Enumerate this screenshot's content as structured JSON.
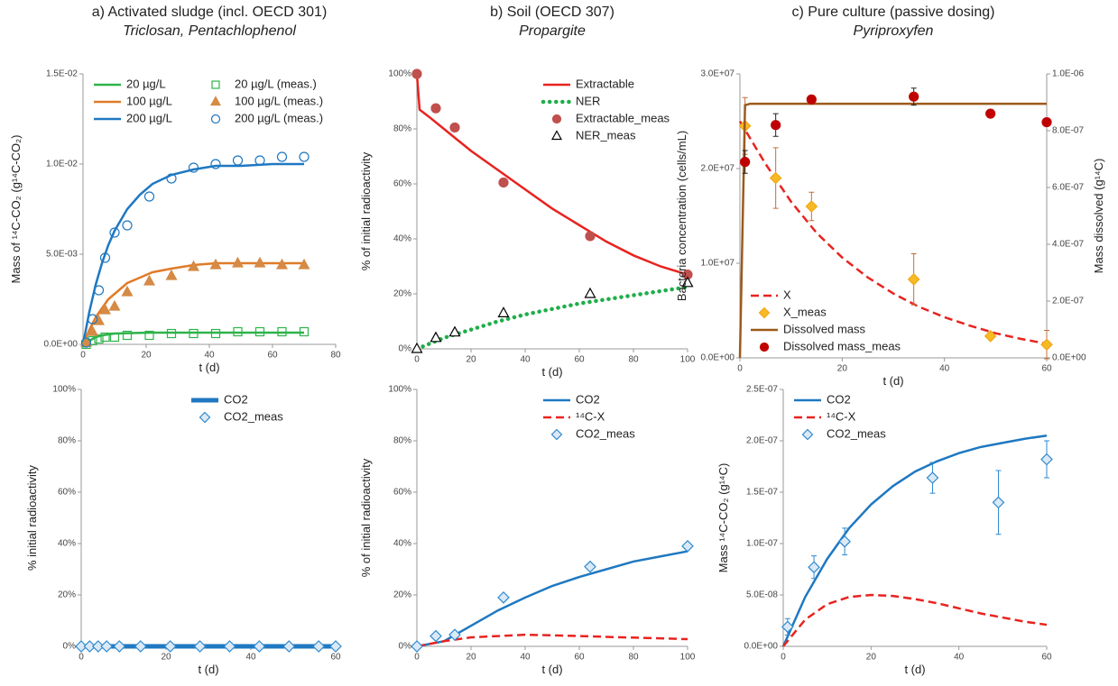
{
  "chart_data": [
    {
      "type": "line",
      "title": "a)  Activated sludge (incl. OECD 301)",
      "subtitle": "Triclosan, Pentachlophenol",
      "x_label": "t (d)",
      "y_label": "Mass of ¹⁴C-CO₂ (g¹⁴C-CO₂)",
      "xlim": [
        0,
        80
      ],
      "xticks": [
        0,
        20,
        40,
        60,
        80
      ],
      "ylim": [
        0,
        0.015
      ],
      "yticks": [
        {
          "value": 0,
          "label": "0.0E+00"
        },
        {
          "value": 0.005,
          "label": "5.0E-03"
        },
        {
          "value": 0.01,
          "label": "1.0E-02"
        },
        {
          "value": 0.015,
          "label": "1.5E-02"
        }
      ],
      "legend": "upper left",
      "legend_columns": 2,
      "series": [
        {
          "name": "20 µg/L",
          "color": "#2eb34a",
          "style": "line",
          "x": [
            0,
            2,
            4,
            6,
            8,
            10,
            14,
            18,
            22,
            28,
            35,
            42,
            50,
            60,
            70
          ],
          "values": [
            0,
            0.0002,
            0.0004,
            0.0005,
            0.00055,
            0.0006,
            0.00062,
            0.00064,
            0.00065,
            0.00065,
            0.00065,
            0.00065,
            0.00065,
            0.00065,
            0.00065
          ]
        },
        {
          "name": "100 µg/L",
          "color": "#e07b28",
          "style": "line",
          "x": [
            0,
            2,
            4,
            6,
            8,
            10,
            14,
            18,
            22,
            28,
            35,
            42,
            50,
            60,
            70
          ],
          "values": [
            0,
            0.0008,
            0.0015,
            0.002,
            0.0025,
            0.0028,
            0.0034,
            0.0037,
            0.004,
            0.0042,
            0.0044,
            0.0045,
            0.0045,
            0.0045,
            0.0045
          ]
        },
        {
          "name": "200 µg/L",
          "color": "#1f78c1",
          "style": "line",
          "x": [
            0,
            2,
            4,
            6,
            8,
            10,
            14,
            18,
            22,
            28,
            35,
            42,
            50,
            60,
            70
          ],
          "values": [
            0,
            0.0018,
            0.0033,
            0.0045,
            0.0055,
            0.0063,
            0.0075,
            0.0083,
            0.0089,
            0.0094,
            0.0097,
            0.0099,
            0.0099,
            0.01,
            0.01
          ]
        },
        {
          "name": "20 µg/L (meas.)",
          "color": "#2eb34a",
          "style": "markers",
          "marker": "square",
          "marker_fill": "none",
          "x": [
            1,
            3,
            5,
            7,
            10,
            14,
            21,
            28,
            35,
            42,
            49,
            56,
            63,
            70
          ],
          "values": [
            0,
            0.0002,
            0.0003,
            0.0004,
            0.0004,
            0.0005,
            0.0005,
            0.0006,
            0.0006,
            0.0006,
            0.0007,
            0.0007,
            0.0007,
            0.0007
          ]
        },
        {
          "name": "100 µg/L (meas.)",
          "color": "#d58a45",
          "style": "markers",
          "marker": "triangle",
          "marker_fill": "#d58a45",
          "x": [
            1,
            3,
            5,
            7,
            10,
            14,
            21,
            28,
            35,
            42,
            49,
            56,
            63,
            70
          ],
          "values": [
            0.0001,
            0.0007,
            0.0013,
            0.0019,
            0.0021,
            0.0029,
            0.0035,
            0.0038,
            0.0043,
            0.0044,
            0.0045,
            0.0045,
            0.0044,
            0.0044
          ]
        },
        {
          "name": "200 µg/L (meas.)",
          "color": "#1f78c1",
          "style": "markers",
          "marker": "circle",
          "marker_fill": "none",
          "x": [
            1,
            3,
            5,
            7,
            10,
            14,
            21,
            28,
            35,
            42,
            49,
            56,
            63,
            70
          ],
          "values": [
            0.0001,
            0.0014,
            0.003,
            0.0048,
            0.0062,
            0.0066,
            0.0082,
            0.0092,
            0.0098,
            0.01,
            0.0102,
            0.0102,
            0.0104,
            0.0104
          ]
        }
      ]
    },
    {
      "type": "line",
      "title": "b) Soil (OECD 307)",
      "subtitle": "Propargite",
      "x_label": "t (d)",
      "y_label": "% of initial radioactivity",
      "xlim": [
        0,
        100
      ],
      "xticks": [
        0,
        20,
        40,
        60,
        80,
        100
      ],
      "ylim": [
        0,
        100
      ],
      "yticks": [
        {
          "value": 0,
          "label": "0%"
        },
        {
          "value": 20,
          "label": "20%"
        },
        {
          "value": 40,
          "label": "40%"
        },
        {
          "value": 60,
          "label": "60%"
        },
        {
          "value": 80,
          "label": "80%"
        },
        {
          "value": 100,
          "label": "100%"
        }
      ],
      "legend": "upper right",
      "series": [
        {
          "name": "Extractable",
          "color": "#e8231f",
          "style": "line",
          "x": [
            0,
            1,
            5,
            10,
            20,
            30,
            40,
            50,
            60,
            70,
            80,
            90,
            100
          ],
          "values": [
            100,
            87,
            84,
            80,
            72,
            65,
            58,
            51,
            45,
            39,
            34,
            30,
            27
          ]
        },
        {
          "name": "NER",
          "color": "#1fae4a",
          "style": "dotted",
          "x": [
            0,
            5,
            10,
            20,
            30,
            40,
            50,
            60,
            70,
            80,
            90,
            100
          ],
          "values": [
            0,
            2,
            4,
            7,
            10,
            12.5,
            14.5,
            16.5,
            18,
            19.5,
            21,
            22.5
          ]
        },
        {
          "name": "Extractable_meas",
          "color": "#c0504d",
          "style": "markers",
          "marker": "circle",
          "marker_fill": "#c0504d",
          "x": [
            0,
            7,
            14,
            32,
            64,
            100
          ],
          "values": [
            100,
            87.5,
            80.5,
            60.5,
            41,
            27
          ]
        },
        {
          "name": "NER_meas",
          "color": "#000000",
          "style": "markers",
          "marker": "triangle",
          "marker_fill": "#ffffff",
          "x": [
            0,
            7,
            14,
            32,
            64,
            100
          ],
          "values": [
            0,
            4,
            6,
            13,
            20,
            24
          ]
        }
      ]
    },
    {
      "type": "line",
      "title": "c) Pure culture (passive dosing)",
      "subtitle": "Pyriproxyfen",
      "x_label": "t (d)",
      "y_label": "Bacteria concentration (cells/mL)",
      "y2_label": "Mass dissolved (g¹⁴C)",
      "xlim": [
        0,
        60
      ],
      "xticks": [
        0,
        20,
        40,
        60
      ],
      "ylim": [
        0,
        30000000
      ],
      "yticks": [
        {
          "value": 0,
          "label": "0.0E+00"
        },
        {
          "value": 10000000,
          "label": "1.0E+07"
        },
        {
          "value": 20000000,
          "label": "2.0E+07"
        },
        {
          "value": 30000000,
          "label": "3.0E+07"
        }
      ],
      "y2lim": [
        0,
        1e-06
      ],
      "y2ticks": [
        {
          "value": 0,
          "label": "0.0E+00"
        },
        {
          "value": 2e-07,
          "label": "2.0E-07"
        },
        {
          "value": 4e-07,
          "label": "4.0E-07"
        },
        {
          "value": 6e-07,
          "label": "6.0E-07"
        },
        {
          "value": 8e-07,
          "label": "8.0E-07"
        },
        {
          "value": 1e-06,
          "label": "1.0E-06"
        }
      ],
      "legend": "lower left",
      "series": [
        {
          "name": "X",
          "color": "#e8231f",
          "style": "dashed",
          "x": [
            0,
            5,
            10,
            15,
            20,
            25,
            30,
            35,
            40,
            45,
            50,
            55,
            60
          ],
          "values": [
            25000000,
            20500000,
            16500000,
            13200000,
            10600000,
            8500000,
            6800000,
            5400000,
            4300000,
            3400000,
            2600000,
            2000000,
            1500000
          ]
        },
        {
          "name": "X_meas",
          "color": "#f0a818",
          "style": "markers",
          "marker": "diamond",
          "marker_fill": "#f7b924",
          "err_color": "#c0703a",
          "x": [
            1,
            7,
            14,
            34,
            49,
            60
          ],
          "values": [
            24500000,
            19000000,
            16000000,
            8300000,
            2300000,
            1400000
          ],
          "errors": [
            3000000,
            3200000,
            1500000,
            2700000,
            0,
            1500000
          ]
        },
        {
          "name": "Dissolved mass",
          "color": "#9c5a1c",
          "style": "line",
          "axis": "y2",
          "x": [
            0,
            1,
            2,
            60
          ],
          "values": [
            0,
            8.9e-07,
            8.95e-07,
            8.95e-07
          ]
        },
        {
          "name": "Dissolved mass_meas",
          "color": "#c00000",
          "style": "markers",
          "marker": "circle",
          "marker_fill": "#c00000",
          "err_color": "#222222",
          "axis": "y2",
          "x": [
            1,
            7,
            14,
            34,
            49,
            60
          ],
          "values": [
            6.9e-07,
            8.2e-07,
            9.1e-07,
            9.2e-07,
            8.6e-07,
            8.3e-07
          ],
          "errors": [
            4e-08,
            4e-08,
            0,
            3e-08,
            0,
            0
          ]
        }
      ]
    },
    {
      "type": "line",
      "x_label": "t (d)",
      "y_label": "% initial radioactivity",
      "xlim": [
        0,
        60
      ],
      "xticks": [
        0,
        20,
        40,
        60
      ],
      "ylim": [
        0,
        100
      ],
      "yticks": [
        {
          "value": 0,
          "label": "0%"
        },
        {
          "value": 20,
          "label": "20%"
        },
        {
          "value": 40,
          "label": "40%"
        },
        {
          "value": 60,
          "label": "60%"
        },
        {
          "value": 80,
          "label": "80%"
        },
        {
          "value": 100,
          "label": "100%"
        }
      ],
      "legend": "upper right",
      "series": [
        {
          "name": "CO2",
          "color": "#1f78c1",
          "style": "line",
          "line_width": 5,
          "x": [
            0,
            60
          ],
          "values": [
            0,
            0
          ]
        },
        {
          "name": "CO2_meas",
          "color": "#2f8ad0",
          "style": "markers",
          "marker": "diamond",
          "marker_fill": "#dbe9f6",
          "x": [
            0,
            2,
            4,
            6,
            9,
            14,
            21,
            28,
            35,
            42,
            49,
            56,
            60
          ],
          "values": [
            0,
            0,
            0,
            0,
            0,
            0,
            0,
            0,
            0,
            0,
            0,
            0,
            0
          ]
        }
      ]
    },
    {
      "type": "line",
      "x_label": "t (d)",
      "y_label": "% of initial radioactivity",
      "xlim": [
        0,
        100
      ],
      "xticks": [
        0,
        20,
        40,
        60,
        80,
        100
      ],
      "ylim": [
        0,
        100
      ],
      "yticks": [
        {
          "value": 0,
          "label": "0%"
        },
        {
          "value": 20,
          "label": "20%"
        },
        {
          "value": 40,
          "label": "40%"
        },
        {
          "value": 60,
          "label": "60%"
        },
        {
          "value": 80,
          "label": "80%"
        },
        {
          "value": 100,
          "label": "100%"
        }
      ],
      "legend": "upper right",
      "series": [
        {
          "name": "CO2",
          "color": "#1f78c1",
          "style": "line",
          "x": [
            0,
            10,
            20,
            30,
            40,
            50,
            60,
            70,
            80,
            90,
            100
          ],
          "values": [
            0,
            2,
            8,
            14,
            19,
            23.5,
            27,
            30,
            33,
            35,
            37
          ]
        },
        {
          "name": "¹⁴C-X",
          "color": "#e8231f",
          "style": "dashed",
          "x": [
            0,
            10,
            20,
            30,
            40,
            50,
            60,
            70,
            80,
            90,
            100
          ],
          "values": [
            0,
            2,
            3.5,
            4,
            4.5,
            4.3,
            4,
            3.7,
            3.4,
            3.1,
            2.8
          ]
        },
        {
          "name": "CO2_meas",
          "color": "#2f8ad0",
          "style": "markers",
          "marker": "diamond",
          "marker_fill": "#dbe9f6",
          "x": [
            0,
            7,
            14,
            32,
            64,
            100
          ],
          "values": [
            0,
            4,
            4.5,
            19,
            31,
            39
          ]
        }
      ]
    },
    {
      "type": "line",
      "x_label": "t (d)",
      "y_label": "Mass ¹⁴C-CO₂ (g¹⁴C)",
      "xlim": [
        0,
        60
      ],
      "xticks": [
        0,
        20,
        40,
        60
      ],
      "ylim": [
        0,
        2.5e-07
      ],
      "yticks": [
        {
          "value": 0,
          "label": "0.0E+00"
        },
        {
          "value": 5e-08,
          "label": "5.0E-08"
        },
        {
          "value": 1e-07,
          "label": "1.0E-07"
        },
        {
          "value": 1.5e-07,
          "label": "1.5E-07"
        },
        {
          "value": 2e-07,
          "label": "2.0E-07"
        },
        {
          "value": 2.5e-07,
          "label": "2.5E-07"
        }
      ],
      "legend": "upper left",
      "series": [
        {
          "name": "CO2",
          "color": "#1f78c1",
          "style": "line",
          "x": [
            0,
            5,
            10,
            15,
            20,
            25,
            30,
            35,
            40,
            45,
            50,
            55,
            60
          ],
          "values": [
            0,
            4.8e-08,
            8.5e-08,
            1.15e-07,
            1.38e-07,
            1.56e-07,
            1.7e-07,
            1.8e-07,
            1.88e-07,
            1.94e-07,
            1.98e-07,
            2.02e-07,
            2.05e-07
          ]
        },
        {
          "name": "¹⁴C-X",
          "color": "#e8231f",
          "style": "dashed",
          "x": [
            0,
            5,
            10,
            15,
            20,
            25,
            30,
            35,
            40,
            45,
            50,
            55,
            60
          ],
          "values": [
            0,
            2.6e-08,
            4.1e-08,
            4.8e-08,
            5e-08,
            4.9e-08,
            4.6e-08,
            4.2e-08,
            3.7e-08,
            3.2e-08,
            2.8e-08,
            2.4e-08,
            2.1e-08
          ]
        },
        {
          "name": "CO2_meas",
          "color": "#2f8ad0",
          "style": "markers",
          "marker": "diamond",
          "marker_fill": "#dbe9f6",
          "err_color": "#2f8ad0",
          "x": [
            1,
            7,
            14,
            34,
            49,
            60
          ],
          "values": [
            1.9e-08,
            7.7e-08,
            1.02e-07,
            1.64e-07,
            1.4e-07,
            1.82e-07
          ],
          "errors": [
            8e-09,
            1.1e-08,
            1.3e-08,
            1.5e-08,
            3.1e-08,
            1.8e-08
          ]
        }
      ]
    }
  ]
}
